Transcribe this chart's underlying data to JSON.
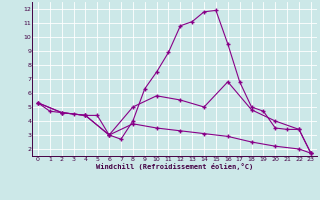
{
  "xlabel": "Windchill (Refroidissement éolien,°C)",
  "bg_color": "#cce8e8",
  "line_color": "#880088",
  "grid_color": "#ffffff",
  "xlim": [
    -0.5,
    23.5
  ],
  "ylim": [
    1.5,
    12.5
  ],
  "xticks": [
    0,
    1,
    2,
    3,
    4,
    5,
    6,
    7,
    8,
    9,
    10,
    11,
    12,
    13,
    14,
    15,
    16,
    17,
    18,
    19,
    20,
    21,
    22,
    23
  ],
  "yticks": [
    2,
    3,
    4,
    5,
    6,
    7,
    8,
    9,
    10,
    11,
    12
  ],
  "line1": {
    "x": [
      0,
      1,
      2,
      3,
      4,
      5,
      6,
      7,
      8,
      9,
      10,
      11,
      12,
      13,
      14,
      15,
      16,
      17,
      18,
      19,
      20,
      21,
      22,
      23
    ],
    "y": [
      5.3,
      4.7,
      4.6,
      4.5,
      4.4,
      4.4,
      3.0,
      2.7,
      4.0,
      6.3,
      7.5,
      8.9,
      10.8,
      11.1,
      11.8,
      11.9,
      9.5,
      6.8,
      5.0,
      4.7,
      3.5,
      3.4,
      3.4,
      1.7
    ]
  },
  "line2": {
    "x": [
      0,
      2,
      4,
      6,
      8,
      10,
      12,
      14,
      16,
      18,
      20,
      22,
      23
    ],
    "y": [
      5.3,
      4.6,
      4.4,
      3.0,
      5.0,
      5.8,
      5.5,
      5.0,
      6.8,
      4.8,
      4.0,
      3.4,
      1.7
    ]
  },
  "line3": {
    "x": [
      0,
      2,
      4,
      6,
      8,
      10,
      12,
      14,
      16,
      18,
      20,
      22,
      23
    ],
    "y": [
      5.3,
      4.6,
      4.4,
      3.0,
      3.8,
      3.5,
      3.3,
      3.1,
      2.9,
      2.5,
      2.2,
      2.0,
      1.7
    ]
  }
}
